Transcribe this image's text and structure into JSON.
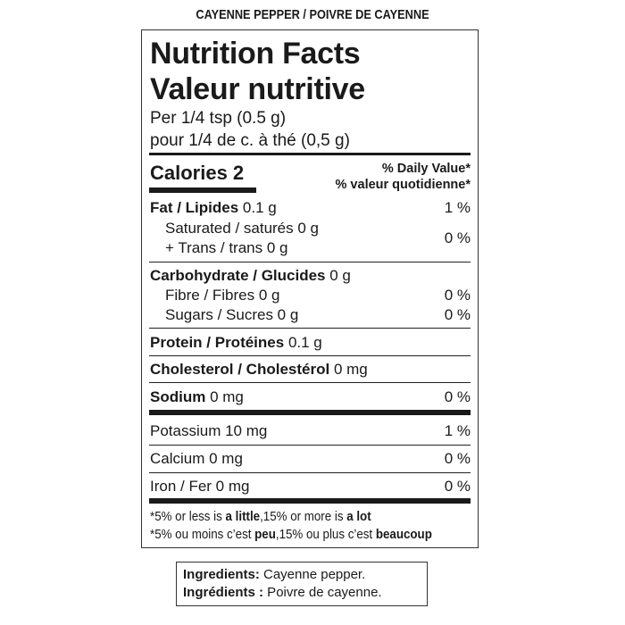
{
  "product_name": "CAYENNE PEPPER / POIVRE DE CAYENNE",
  "title_en": "Nutrition Facts",
  "title_fr": "Valeur nutritive",
  "serving_en": "Per 1/4 tsp (0.5 g)",
  "serving_fr": "pour 1/4 de c. à thé (0,5 g)",
  "calories": {
    "label": "Calories 2"
  },
  "daily_value_en": "% Daily Value*",
  "daily_value_fr": "% valeur quotidienne*",
  "rows": {
    "fat": {
      "label": "Fat / Lipides",
      "amount": "0.1 g",
      "dv": "1 %"
    },
    "saturated": {
      "label": "Saturated / saturés 0 g"
    },
    "trans": {
      "label": "+ Trans / trans 0 g",
      "dv": "0 %"
    },
    "carb": {
      "label": "Carbohydrate / Glucides",
      "amount": "0 g"
    },
    "fibre": {
      "label": "Fibre / Fibres 0 g",
      "dv": "0 %"
    },
    "sugars": {
      "label": "Sugars / Sucres 0 g",
      "dv": "0 %"
    },
    "protein": {
      "label": "Protein / Protéines",
      "amount": "0.1 g"
    },
    "cholesterol": {
      "label": "Cholesterol / Cholestérol",
      "amount": "0 mg"
    },
    "sodium": {
      "label": "Sodium",
      "amount": "0 mg",
      "dv": "0 %"
    },
    "potassium": {
      "label": "Potassium 10 mg",
      "dv": "1 %"
    },
    "calcium": {
      "label": "Calcium 0 mg",
      "dv": "0 %"
    },
    "iron": {
      "label": "Iron / Fer 0 mg",
      "dv": "0 %"
    }
  },
  "footnote_en": {
    "a": "*5% or less is ",
    "b": "a little",
    "c": ",15% or more is ",
    "d": "a lot"
  },
  "footnote_fr": {
    "a": "*5% ou moins c’est ",
    "b": "peu",
    "c": ",15% ou plus c’est ",
    "d": "beaucoup"
  },
  "ingredients": {
    "en_label": "Ingredients:",
    "en_text": " Cayenne pepper.",
    "fr_label": "Ingrédients :",
    "fr_text": " Poivre de cayenne."
  }
}
